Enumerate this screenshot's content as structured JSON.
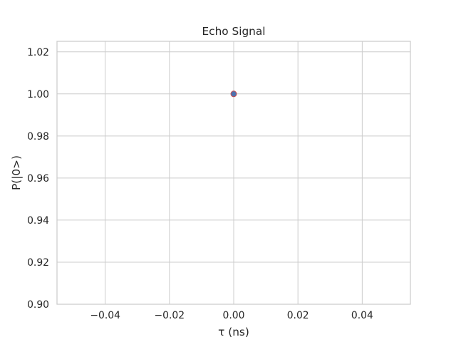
{
  "chart_data": {
    "type": "scatter",
    "title": "Echo Signal",
    "xlabel": "τ (ns)",
    "ylabel": "P(|0>)",
    "xlim": [
      -0.055,
      0.055
    ],
    "ylim": [
      0.9,
      1.025
    ],
    "x_ticks": [
      -0.04,
      -0.02,
      0.0,
      0.02,
      0.04
    ],
    "x_tick_labels": [
      "−0.04",
      "−0.02",
      "0.00",
      "0.02",
      "0.04"
    ],
    "y_ticks": [
      0.9,
      0.92,
      0.94,
      0.96,
      0.98,
      1.0,
      1.02
    ],
    "y_tick_labels": [
      "0.90",
      "0.92",
      "0.94",
      "0.96",
      "0.98",
      "1.00",
      "1.02"
    ],
    "grid": true,
    "series": [
      {
        "points": [
          {
            "x": 0.0,
            "y": 1.0
          }
        ],
        "marker_fill": "#4c72b0",
        "marker_edge": "#c44e52"
      }
    ]
  }
}
